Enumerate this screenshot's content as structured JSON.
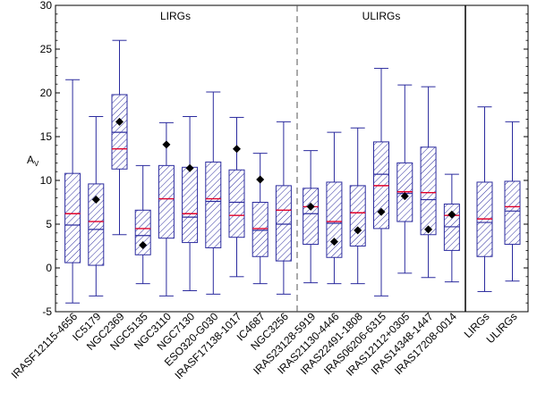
{
  "chart_data": {
    "type": "boxplot",
    "title": "",
    "xlabel": "",
    "ylabel": "A",
    "ylabel_subscript": "V",
    "ylim": [
      -5,
      30
    ],
    "yticks": [
      -5,
      0,
      5,
      10,
      15,
      20,
      25,
      30
    ],
    "grid": false,
    "legend": "none",
    "group_labels": [
      {
        "text": "LIRGs",
        "panel": 0
      },
      {
        "text": "ULIRGs",
        "panel": 1
      }
    ],
    "panels": [
      {
        "id": "lirgs",
        "boxes": [
          {
            "label": "IRASF12115-4656",
            "whisker_low": -4.0,
            "q1": 0.6,
            "median": 4.9,
            "mean": 6.2,
            "q3": 10.8,
            "whisker_high": 21.5,
            "marker": null
          },
          {
            "label": "IC5179",
            "whisker_low": -3.2,
            "q1": 0.3,
            "median": 4.4,
            "mean": 5.3,
            "q3": 9.6,
            "whisker_high": 17.3,
            "marker": 7.8
          },
          {
            "label": "NGC2369",
            "whisker_low": 3.8,
            "q1": 11.3,
            "median": 15.5,
            "mean": 13.6,
            "q3": 19.8,
            "whisker_high": 26.0,
            "marker": 16.7
          },
          {
            "label": "NGC5135",
            "whisker_low": -1.8,
            "q1": 1.5,
            "median": 3.7,
            "mean": 4.5,
            "q3": 6.6,
            "whisker_high": 11.7,
            "marker": 2.6
          },
          {
            "label": "NGC3110",
            "whisker_low": -3.2,
            "q1": 3.4,
            "median": 7.9,
            "mean": 7.9,
            "q3": 11.7,
            "whisker_high": 16.6,
            "marker": 14.1
          },
          {
            "label": "NGC7130",
            "whisker_low": -2.6,
            "q1": 2.9,
            "median": 5.8,
            "mean": 6.2,
            "q3": 11.5,
            "whisker_high": 17.3,
            "marker": 11.4
          },
          {
            "label": "ESO320-G030",
            "whisker_low": -3.0,
            "q1": 2.3,
            "median": 7.6,
            "mean": 7.9,
            "q3": 12.1,
            "whisker_high": 20.1,
            "marker": null
          },
          {
            "label": "IRASF17138-1017",
            "whisker_low": -1.0,
            "q1": 3.5,
            "median": 7.5,
            "mean": 6.0,
            "q3": 11.2,
            "whisker_high": 17.2,
            "marker": 13.6
          },
          {
            "label": "IC4687",
            "whisker_low": -1.8,
            "q1": 1.3,
            "median": 4.3,
            "mean": 4.5,
            "q3": 7.5,
            "whisker_high": 13.1,
            "marker": 10.1
          },
          {
            "label": "NGC3256",
            "whisker_low": -3.0,
            "q1": 0.8,
            "median": 5.0,
            "mean": 6.6,
            "q3": 9.4,
            "whisker_high": 16.7,
            "marker": null
          }
        ]
      },
      {
        "id": "ulirgs",
        "boxes": [
          {
            "label": "IRAS23128-5919",
            "whisker_low": -1.7,
            "q1": 2.7,
            "median": 6.2,
            "mean": 7.0,
            "q3": 9.1,
            "whisker_high": 13.4,
            "marker": 7.0
          },
          {
            "label": "IRAS21130-4446",
            "whisker_low": -1.8,
            "q1": 1.2,
            "median": 5.1,
            "mean": 5.3,
            "q3": 9.8,
            "whisker_high": 15.5,
            "marker": 3.0
          },
          {
            "label": "IRAS22491-1808",
            "whisker_low": -1.8,
            "q1": 2.5,
            "median": 6.3,
            "mean": 6.3,
            "q3": 9.4,
            "whisker_high": 16.0,
            "marker": 4.3
          },
          {
            "label": "IRAS06206-6315",
            "whisker_low": -3.2,
            "q1": 4.5,
            "median": 10.7,
            "mean": 9.4,
            "q3": 14.4,
            "whisker_high": 22.8,
            "marker": 6.4
          },
          {
            "label": "IRAS12112+0305",
            "whisker_low": -0.6,
            "q1": 5.3,
            "median": 8.5,
            "mean": 8.7,
            "q3": 12.0,
            "whisker_high": 20.9,
            "marker": 8.2
          },
          {
            "label": "IRAS14348-1447",
            "whisker_low": -1.1,
            "q1": 3.8,
            "median": 7.8,
            "mean": 8.6,
            "q3": 13.8,
            "whisker_high": 20.7,
            "marker": 4.4
          },
          {
            "label": "IRAS17208-0014",
            "whisker_low": -1.6,
            "q1": 2.0,
            "median": 4.7,
            "mean": 6.0,
            "q3": 7.3,
            "whisker_high": 10.7,
            "marker": 6.1
          }
        ]
      },
      {
        "id": "summary",
        "boxes": [
          {
            "label": "LIRGs",
            "whisker_low": -2.7,
            "q1": 1.3,
            "median": 5.2,
            "mean": 5.6,
            "q3": 9.8,
            "whisker_high": 18.4,
            "marker": null
          },
          {
            "label": "ULIRGs",
            "whisker_low": -1.5,
            "q1": 2.7,
            "median": 6.5,
            "mean": 7.0,
            "q3": 9.9,
            "whisker_high": 16.7,
            "marker": null
          }
        ]
      }
    ],
    "colors": {
      "box": "#2b2b9e",
      "hatch": "#2b2b9e",
      "mean_line": "#e0002a",
      "marker": "#000000",
      "frame": "#000000",
      "separator": "#555555"
    }
  }
}
